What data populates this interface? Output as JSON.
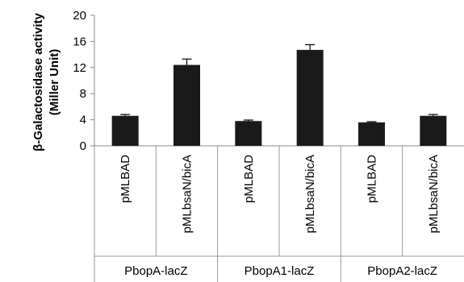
{
  "chart_data": {
    "type": "bar",
    "ylabel_lines": [
      "β-Galactosidase activity",
      "(Miller Unit)"
    ],
    "ylim": [
      0,
      20
    ],
    "yticks": [
      0,
      4,
      8,
      12,
      16,
      20
    ],
    "categories": [
      "pMLBAD",
      "pMLbsaN/bicA",
      "pMLBAD",
      "pMLbsaN/bicA",
      "pMLBAD",
      "pMLbsaN/bicA"
    ],
    "groups": [
      "PbopA-lacZ",
      "PbopA1-lacZ",
      "PbopA2-lacZ"
    ],
    "values": [
      4.6,
      12.4,
      3.8,
      14.7,
      3.6,
      4.6
    ],
    "errors": [
      0.2,
      0.9,
      0.15,
      0.8,
      0.1,
      0.2
    ],
    "bar_color": "#1a1a1a",
    "grid": false,
    "legend": "none"
  }
}
